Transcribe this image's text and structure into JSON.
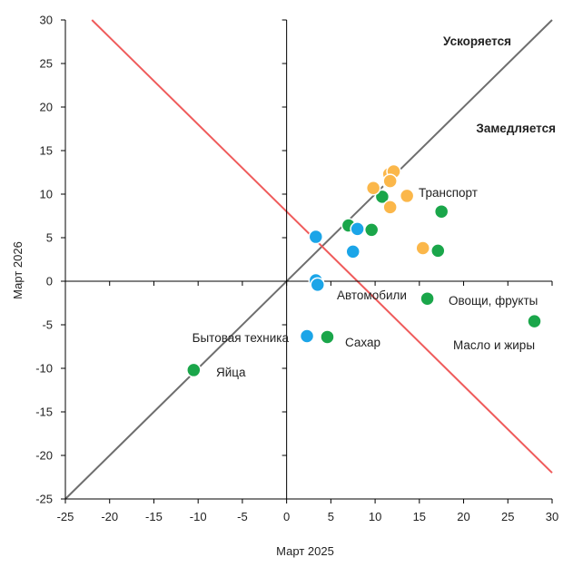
{
  "chart_data": {
    "type": "scatter",
    "xlabel": "Март 2025",
    "ylabel": "Март 2026",
    "xlim": [
      -25,
      30
    ],
    "ylim": [
      -25,
      30
    ],
    "xticks": [
      "-25",
      "-20",
      "-15",
      "-10",
      "-5",
      "0",
      "5",
      "10",
      "15",
      "20",
      "25",
      "30"
    ],
    "yticks": [
      "-25",
      "-20",
      "-15",
      "-10",
      "-5",
      "0",
      "5",
      "10",
      "15",
      "20",
      "25",
      "30"
    ],
    "grid": false,
    "colors": {
      "green": "#1aa64a",
      "blue": "#1ba5e8",
      "orange": "#fbb74a",
      "diagonal": "#6e6e6e",
      "antidiagonal": "#ef5b5b"
    },
    "lines": [
      {
        "kind": "diagonal",
        "from": [
          -25,
          -25
        ],
        "to": [
          30,
          30
        ]
      },
      {
        "kind": "antidiagonal",
        "from": [
          -22,
          30
        ],
        "to": [
          30,
          -22
        ]
      }
    ],
    "region_labels": [
      "Ускоряется",
      "Замедляется"
    ],
    "point_labels": [
      "Транспорт",
      "Автомобили",
      "Овощи, фрукты",
      "Бытовая техника",
      "Сахар",
      "Масло и жиры",
      "Яйца"
    ],
    "points": [
      {
        "x": -10.5,
        "y": -10.2,
        "color": "green"
      },
      {
        "x": 4.6,
        "y": -6.4,
        "color": "green"
      },
      {
        "x": 15.9,
        "y": -2.0,
        "color": "green"
      },
      {
        "x": 28.0,
        "y": -4.6,
        "color": "green"
      },
      {
        "x": 7.0,
        "y": 6.4,
        "color": "green"
      },
      {
        "x": 9.6,
        "y": 5.9,
        "color": "green"
      },
      {
        "x": 10.8,
        "y": 9.7,
        "color": "green"
      },
      {
        "x": 17.5,
        "y": 8.0,
        "color": "green"
      },
      {
        "x": 17.1,
        "y": 3.5,
        "color": "green"
      },
      {
        "x": 2.3,
        "y": -6.3,
        "color": "blue"
      },
      {
        "x": 3.3,
        "y": 0.1,
        "color": "blue"
      },
      {
        "x": 3.5,
        "y": -0.4,
        "color": "blue"
      },
      {
        "x": 3.3,
        "y": 5.1,
        "color": "blue"
      },
      {
        "x": 7.5,
        "y": 3.4,
        "color": "blue"
      },
      {
        "x": 8.0,
        "y": 6.0,
        "color": "blue"
      },
      {
        "x": 11.6,
        "y": 11.4,
        "color": "blue"
      },
      {
        "x": 9.8,
        "y": 10.7,
        "color": "orange"
      },
      {
        "x": 11.6,
        "y": 12.3,
        "color": "orange"
      },
      {
        "x": 12.1,
        "y": 12.6,
        "color": "orange"
      },
      {
        "x": 11.7,
        "y": 11.5,
        "color": "orange"
      },
      {
        "x": 13.6,
        "y": 9.8,
        "color": "orange"
      },
      {
        "x": 11.7,
        "y": 8.5,
        "color": "orange"
      },
      {
        "x": 15.4,
        "y": 3.8,
        "color": "orange"
      }
    ]
  }
}
